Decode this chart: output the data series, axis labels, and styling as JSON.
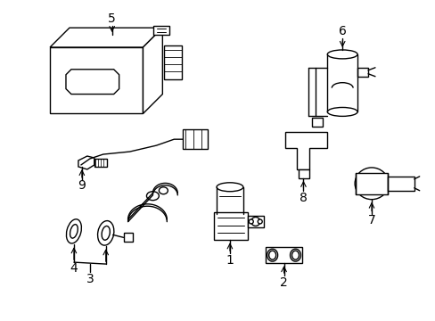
{
  "background_color": "#ffffff",
  "line_color": "#000000",
  "line_width": 1.0
}
